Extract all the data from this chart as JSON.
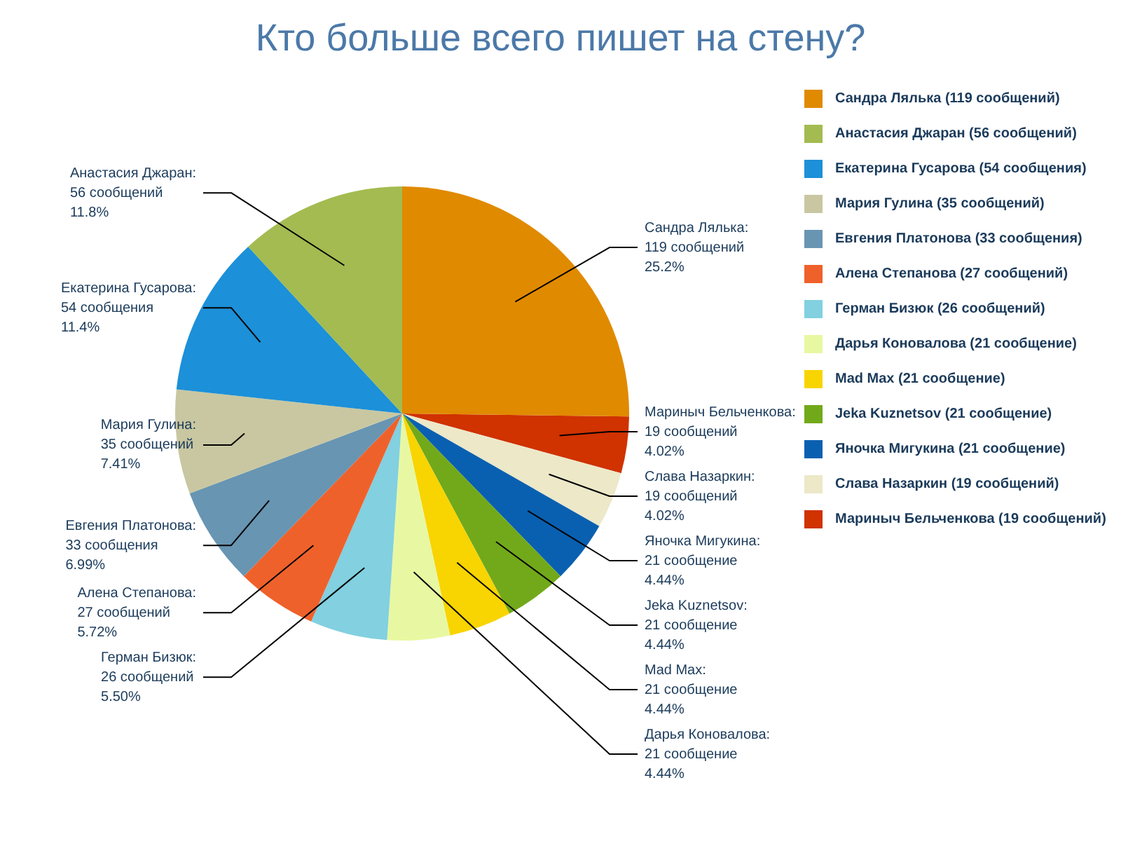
{
  "chart_data": {
    "type": "pie",
    "title": "Кто больше всего пишет на стену?",
    "categories": [
      "Сандра Лялька (119 сообщений)",
      "Анастасия Джаран (56 сообщений)",
      "Екатерина Гусарова (54 сообщения)",
      "Мария Гулина (35 сообщений)",
      "Евгения Платонова (33 сообщения)",
      "Алена Степанова (27 сообщений)",
      "Герман Бизюк (26 сообщений)",
      "Дарья Коновалова (21 сообщение)",
      "Mad Max (21 сообщение)",
      "Jeka Kuznetsov (21 сообщение)",
      "Яночка Мигукина (21 сообщение)",
      "Слава Назаркин (19 сообщений)",
      "Мариныч Бельченкова (19 сообщений)"
    ],
    "values": [
      119,
      56,
      54,
      35,
      33,
      27,
      26,
      21,
      21,
      21,
      21,
      19,
      19
    ],
    "colors": [
      "#e08a00",
      "#a3bb50",
      "#1c90d8",
      "#c9c7a1",
      "#6895b2",
      "#ef612b",
      "#82d0e0",
      "#e8f8a2",
      "#f8d400",
      "#72a91a",
      "#0a60b0",
      "#ece8c8",
      "#d03200"
    ],
    "value_labels": [
      "Сандра Лялька:\n119 сообщений\n25.2%",
      "Анастасия Джаран:\n56 сообщений\n11.8%",
      "Екатерина Гусарова:\n54 сообщения\n11.4%",
      "Мария Гулина:\n35 сообщений\n7.41%",
      "Евгения Платонова:\n33 сообщения\n6.99%",
      "Алена Степанова:\n27 сообщений\n5.72%",
      "Герман Бизюк:\n26 сообщений\n5.50%",
      "Дарья Коновалова:\n21 сообщение\n4.44%",
      "Mad Max:\n21 сообщение\n4.44%",
      "Jeka Kuznetsov:\n21 сообщение\n4.44%",
      "Яночка Мигукина:\n21 сообщение\n4.44%",
      "Слава Назаркин:\n19 сообщений\n4.02%",
      "Мариныч Бельченкова:\n19 сообщений\n4.02%"
    ],
    "legend": "right"
  }
}
